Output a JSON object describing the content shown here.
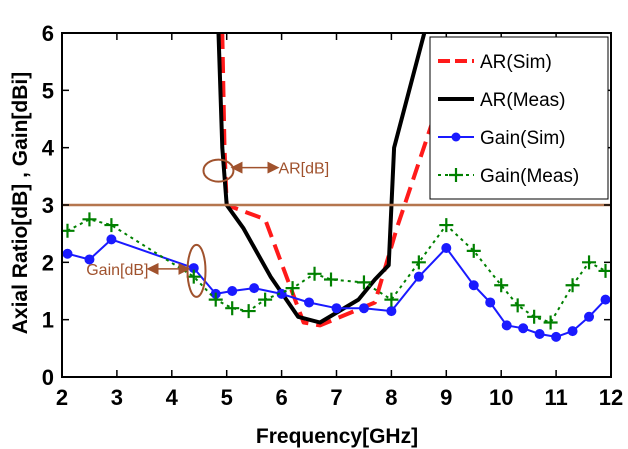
{
  "chart_data": {
    "type": "line",
    "title": "",
    "xlabel": "Frequency[GHz]",
    "ylabel": "Axial Ratio[dB] , Gain[dBi]",
    "xlim": [
      2,
      12
    ],
    "ylim": [
      0,
      6
    ],
    "xticks": [
      "2",
      "3",
      "4",
      "5",
      "6",
      "7",
      "8",
      "9",
      "10",
      "11",
      "12"
    ],
    "yticks": [
      "0",
      "1",
      "2",
      "3",
      "4",
      "5",
      "6"
    ],
    "grid": false,
    "legend_position": "top-right",
    "reference_line": {
      "y": 3,
      "color": "#b5764e"
    },
    "annotations": [
      {
        "text": "AR[dB]",
        "x": 4.85,
        "y": 3.6,
        "color": "#a0522d"
      },
      {
        "text": "Gain[dB]",
        "x": 4.45,
        "y": 1.85,
        "color": "#a0522d"
      }
    ],
    "series": [
      {
        "name": "AR(Sim)",
        "color": "#ff1a1a",
        "style": "dashed",
        "marker": "none",
        "x": [
          4.92,
          4.96,
          5.0,
          5.7,
          6.4,
          6.7,
          7.7,
          8.1,
          8.8
        ],
        "y": [
          6.0,
          4.0,
          3.0,
          2.75,
          0.95,
          0.9,
          1.3,
          2.6,
          4.6
        ]
      },
      {
        "name": "AR(Meas)",
        "color": "#000000",
        "style": "solid",
        "marker": "none",
        "x": [
          4.85,
          4.92,
          5.0,
          5.3,
          5.8,
          6.3,
          6.7,
          7.4,
          7.7,
          7.95,
          8.05,
          8.6
        ],
        "y": [
          6.0,
          4.0,
          3.0,
          2.6,
          1.75,
          1.05,
          0.95,
          1.35,
          1.7,
          1.95,
          4.0,
          6.0
        ]
      },
      {
        "name": "Gain(Sim)",
        "color": "#1a1aff",
        "style": "solid",
        "marker": "circle",
        "x": [
          2.1,
          2.5,
          2.9,
          4.4,
          4.8,
          5.1,
          5.5,
          6.0,
          6.5,
          7.0,
          7.5,
          8.0,
          8.5,
          9.0,
          9.5,
          9.8,
          10.1,
          10.4,
          10.7,
          11.0,
          11.3,
          11.6,
          11.9
        ],
        "y": [
          2.15,
          2.05,
          2.4,
          1.9,
          1.45,
          1.5,
          1.55,
          1.45,
          1.3,
          1.2,
          1.2,
          1.15,
          1.75,
          2.25,
          1.6,
          1.3,
          0.9,
          0.85,
          0.75,
          0.7,
          0.8,
          1.05,
          1.35
        ]
      },
      {
        "name": "Gain(Meas)",
        "color": "#008000",
        "style": "dotted",
        "marker": "plus",
        "x": [
          2.1,
          2.5,
          2.9,
          4.4,
          4.8,
          5.1,
          5.4,
          5.7,
          6.2,
          6.6,
          6.9,
          7.5,
          8.0,
          8.5,
          9.0,
          9.5,
          10.0,
          10.3,
          10.6,
          10.9,
          11.3,
          11.6,
          11.9
        ],
        "y": [
          2.55,
          2.75,
          2.65,
          1.75,
          1.35,
          1.2,
          1.15,
          1.35,
          1.55,
          1.8,
          1.7,
          1.65,
          1.35,
          2.0,
          2.65,
          2.2,
          1.6,
          1.25,
          1.05,
          0.95,
          1.6,
          2.0,
          1.85
        ]
      }
    ]
  }
}
